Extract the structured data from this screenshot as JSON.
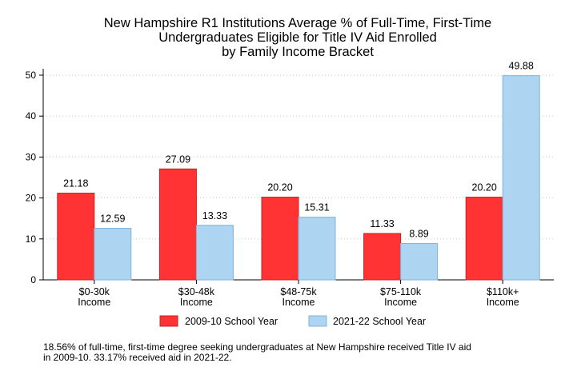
{
  "chart_data": {
    "type": "bar",
    "title_lines": [
      "New Hampshire R1 Institutions Average % of Full-Time, First-Time",
      "Undergraduates Eligible for Title IV Aid Enrolled",
      "by Family Income Bracket"
    ],
    "categories": [
      [
        "$0-30k",
        "Income"
      ],
      [
        "$30-48k",
        "Income"
      ],
      [
        "$48-75k",
        "Income"
      ],
      [
        "$75-110k",
        "Income"
      ],
      [
        "$110k+",
        "Income"
      ]
    ],
    "series": [
      {
        "name": "2009-10 School Year",
        "color": "#ff3333",
        "stroke": "#c42020",
        "values": [
          21.18,
          27.09,
          20.2,
          11.33,
          20.2
        ],
        "labels": [
          "21.18",
          "27.09",
          "20.20",
          "11.33",
          "20.20"
        ]
      },
      {
        "name": "2021-22 School Year",
        "color": "#add4f0",
        "stroke": "#7fb3db",
        "values": [
          12.59,
          13.33,
          15.31,
          8.89,
          49.88
        ],
        "labels": [
          "12.59",
          "13.33",
          "15.31",
          "8.89",
          "49.88"
        ]
      }
    ],
    "ylim": [
      0,
      50
    ],
    "yticks": [
      0,
      10,
      20,
      30,
      40,
      50
    ],
    "grid": true,
    "legend_position": "bottom"
  },
  "footnote": {
    "line1": "18.56% of full-time, first-time degree seeking undergraduates at New Hampshire received Title IV aid",
    "line2": "in 2009-10. 33.17% received aid in 2021-22."
  }
}
